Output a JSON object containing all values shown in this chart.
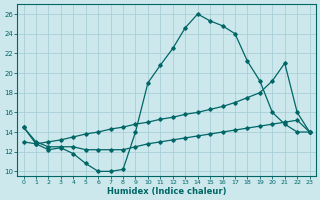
{
  "xlabel": "Humidex (Indice chaleur)",
  "bg_color": "#cce8ec",
  "grid_color": "#aacfd8",
  "line_color": "#006666",
  "xlim": [
    -0.5,
    23.5
  ],
  "ylim": [
    9.5,
    27
  ],
  "yticks": [
    10,
    12,
    14,
    16,
    18,
    20,
    22,
    24,
    26
  ],
  "xticks": [
    0,
    1,
    2,
    3,
    4,
    5,
    6,
    7,
    8,
    9,
    10,
    11,
    12,
    13,
    14,
    15,
    16,
    17,
    18,
    19,
    20,
    21,
    22,
    23
  ],
  "curve1_x": [
    0,
    1,
    2,
    3,
    4,
    5,
    6,
    7,
    8,
    9,
    10,
    11,
    12,
    13,
    14,
    15,
    16,
    17,
    18,
    19,
    20,
    21,
    22,
    23
  ],
  "curve1_y": [
    14.5,
    12.8,
    12.2,
    12.4,
    11.8,
    10.8,
    10.0,
    10.0,
    10.2,
    14.0,
    19.0,
    20.8,
    22.5,
    24.6,
    26.0,
    25.3,
    24.8,
    24.0,
    21.2,
    19.2,
    16.0,
    14.8,
    14.0,
    14.0
  ],
  "curve2_x": [
    0,
    1,
    2,
    3,
    4,
    5,
    6,
    7,
    8,
    9,
    10,
    11,
    12,
    13,
    14,
    15,
    16,
    17,
    18,
    19,
    20,
    21,
    22,
    23
  ],
  "curve2_y": [
    13.0,
    12.8,
    13.0,
    13.2,
    13.5,
    13.8,
    14.0,
    14.3,
    14.5,
    14.8,
    15.0,
    15.3,
    15.5,
    15.8,
    16.0,
    16.3,
    16.6,
    17.0,
    17.5,
    18.0,
    19.2,
    21.0,
    16.0,
    14.0
  ],
  "curve3_x": [
    0,
    1,
    2,
    3,
    4,
    5,
    6,
    7,
    8,
    9,
    10,
    11,
    12,
    13,
    14,
    15,
    16,
    17,
    18,
    19,
    20,
    21,
    22,
    23
  ],
  "curve3_y": [
    14.5,
    13.0,
    12.5,
    12.5,
    12.5,
    12.2,
    12.2,
    12.2,
    12.2,
    12.5,
    12.8,
    13.0,
    13.2,
    13.4,
    13.6,
    13.8,
    14.0,
    14.2,
    14.4,
    14.6,
    14.8,
    15.0,
    15.2,
    14.0
  ]
}
